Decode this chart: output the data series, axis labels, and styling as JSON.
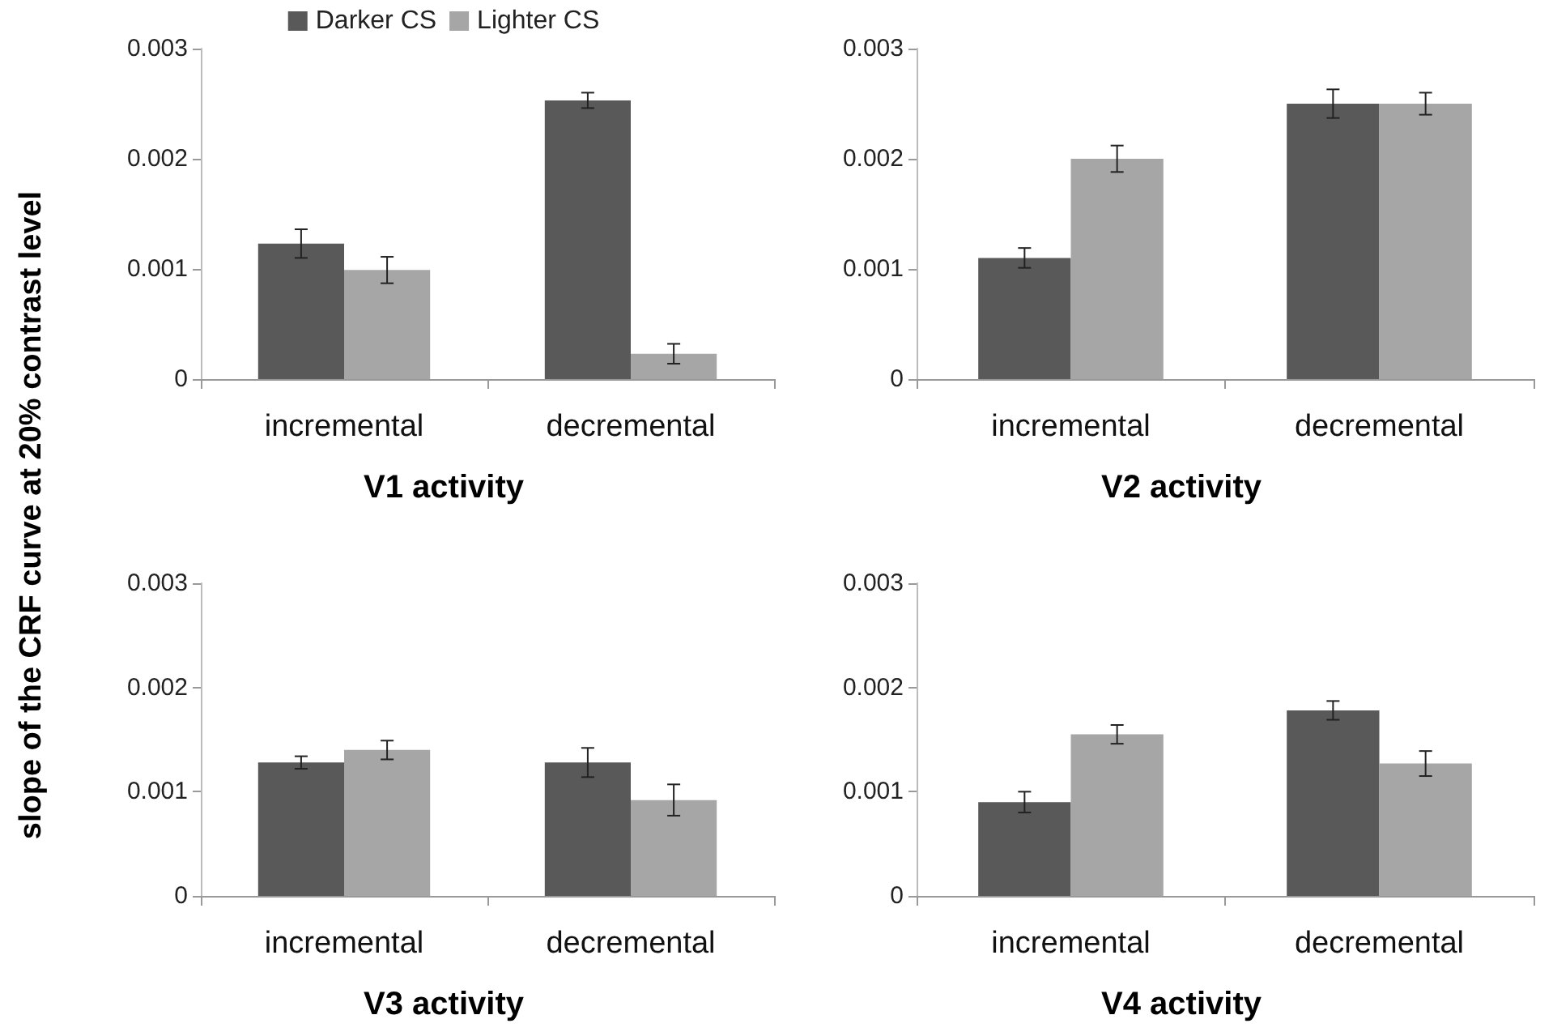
{
  "chart_data": [
    {
      "type": "bar",
      "title": "V1 activity",
      "ylabel": "slope of the CRF curve at 20% contrast level",
      "categories": [
        "incremental",
        "decremental"
      ],
      "ylim": [
        0,
        0.003
      ],
      "yticks": [
        0,
        0.001,
        0.002,
        0.003
      ],
      "grid": false,
      "legend": "top",
      "series": [
        {
          "name": "Darker CS",
          "color": "#595959",
          "values": [
            0.00123,
            0.00253
          ],
          "errors": [
            0.00013,
            7e-05
          ]
        },
        {
          "name": "Lighter CS",
          "color": "#a6a6a6",
          "values": [
            0.00099,
            0.00023
          ],
          "errors": [
            0.00012,
            9e-05
          ]
        }
      ]
    },
    {
      "type": "bar",
      "title": "V2 activity",
      "categories": [
        "incremental",
        "decremental"
      ],
      "ylim": [
        0,
        0.003
      ],
      "yticks": [
        0,
        0.001,
        0.002,
        0.003
      ],
      "grid": false,
      "series": [
        {
          "color": "#595959",
          "values": [
            0.0011,
            0.0025
          ],
          "errors": [
            9e-05,
            0.00013
          ]
        },
        {
          "color": "#a6a6a6",
          "values": [
            0.002,
            0.0025
          ],
          "errors": [
            0.00012,
            0.0001
          ]
        }
      ]
    },
    {
      "type": "bar",
      "title": "V3 activity",
      "categories": [
        "incremental",
        "decremental"
      ],
      "ylim": [
        0,
        0.003
      ],
      "yticks": [
        0,
        0.001,
        0.002,
        0.003
      ],
      "grid": false,
      "series": [
        {
          "color": "#595959",
          "values": [
            0.00128,
            0.00128
          ],
          "errors": [
            6e-05,
            0.00014
          ]
        },
        {
          "color": "#a6a6a6",
          "values": [
            0.0014,
            0.00092
          ],
          "errors": [
            9e-05,
            0.00015
          ]
        }
      ]
    },
    {
      "type": "bar",
      "title": "V4 activity",
      "categories": [
        "incremental",
        "decremental"
      ],
      "ylim": [
        0,
        0.003
      ],
      "yticks": [
        0,
        0.001,
        0.002,
        0.003
      ],
      "grid": false,
      "series": [
        {
          "color": "#595959",
          "values": [
            0.0009,
            0.00178
          ],
          "errors": [
            0.0001,
            9e-05
          ]
        },
        {
          "color": "#a6a6a6",
          "values": [
            0.00155,
            0.00127
          ],
          "errors": [
            9e-05,
            0.00012
          ]
        }
      ]
    }
  ]
}
